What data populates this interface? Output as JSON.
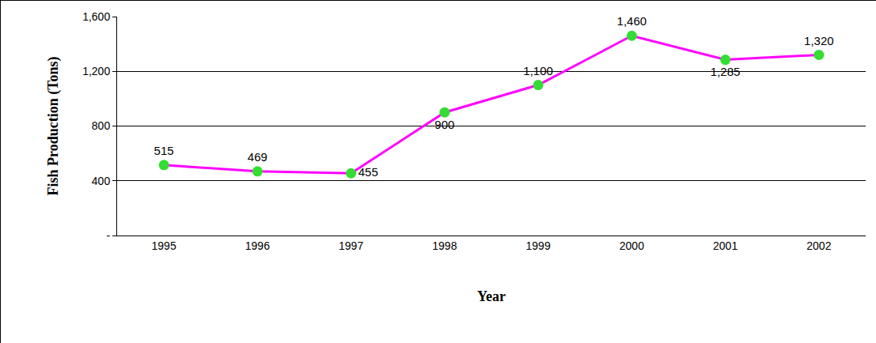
{
  "chart_data": {
    "type": "line",
    "x_label": "Year",
    "y_label": "Fish Production (Tons)",
    "categories": [
      "1995",
      "1996",
      "1997",
      "1998",
      "1999",
      "2000",
      "2001",
      "2002"
    ],
    "values": [
      515,
      469,
      455,
      900,
      1100,
      1460,
      1285,
      1320
    ],
    "value_labels": [
      "515",
      "469",
      "455",
      "900",
      "1,100",
      "1,460",
      "1,285",
      "1,320"
    ],
    "color": "#ff00ff",
    "marker": "circle",
    "data_labels": true,
    "ylim": [
      0,
      1600
    ],
    "yticks": [
      {
        "value": 0,
        "label": "-"
      },
      400,
      800,
      {
        "value": 1200,
        "label": "1,200"
      },
      {
        "value": 1600,
        "label": "1,600"
      }
    ],
    "grid": true
  }
}
